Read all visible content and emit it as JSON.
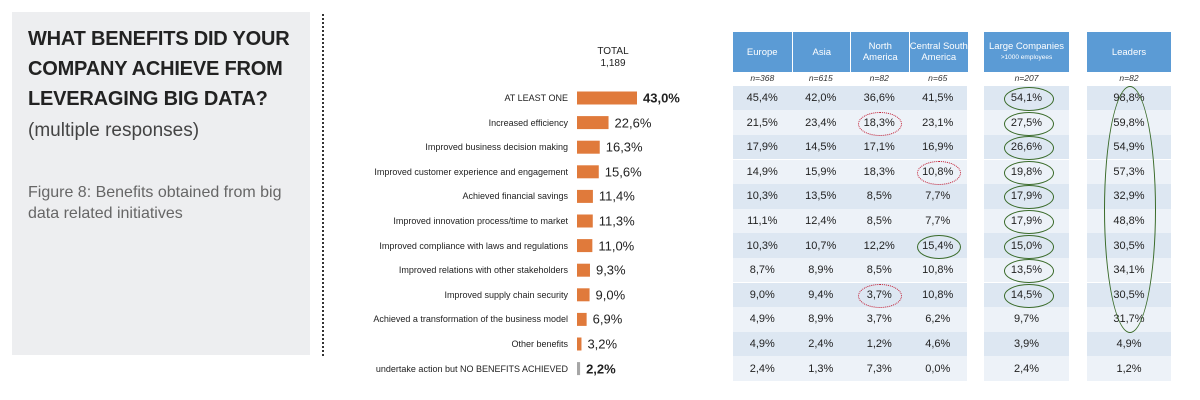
{
  "panel": {
    "title": "WHAT BENEFITS DID YOUR COMPANY ACHIEVE FROM LEVERAGING BIG DATA?",
    "subtitle": "(multiple responses)",
    "caption": "Figure 8: Benefits obtained from big data related initiatives"
  },
  "chart_data": {
    "type": "bar",
    "orientation": "horizontal",
    "header": {
      "label": "TOTAL",
      "n": "1,189"
    },
    "categories": [
      "AT LEAST ONE",
      "Increased efficiency",
      "Improved business decision making",
      "Improved customer experience and engagement",
      "Achieved financial savings",
      "Improved innovation process/time to market",
      "Improved compliance with laws and regulations",
      "Improved relations with other stakeholders",
      "Improved supply chain security",
      "Achieved a transformation of the business model",
      "Other benefits",
      "undertake action but NO BENEFITS ACHIEVED"
    ],
    "values": [
      43.0,
      22.6,
      16.3,
      15.6,
      11.4,
      11.3,
      11.0,
      9.3,
      9.0,
      6.9,
      3.2,
      2.2
    ],
    "value_labels": [
      "43,0%",
      "22,6%",
      "16,3%",
      "15,6%",
      "11,4%",
      "11,3%",
      "11,0%",
      "9,3%",
      "9,0%",
      "6,9%",
      "3,2%",
      "2,2%"
    ],
    "bar_colors": [
      "#e07a3b",
      "#e07a3b",
      "#e07a3b",
      "#e07a3b",
      "#e07a3b",
      "#e07a3b",
      "#e07a3b",
      "#e07a3b",
      "#e07a3b",
      "#e07a3b",
      "#e07a3b",
      "#a6a6a6"
    ],
    "bold_rows": [
      0,
      11
    ],
    "xlim": [
      0,
      43
    ]
  },
  "regions": {
    "columns": [
      {
        "label": "Europe",
        "n": "n=368"
      },
      {
        "label": "Asia",
        "n": "n=615"
      },
      {
        "label": "North America",
        "n": "n=82"
      },
      {
        "label": "Central South America",
        "n": "n=65"
      }
    ],
    "rows": [
      [
        "45,4%",
        "42,0%",
        "36,6%",
        "41,5%"
      ],
      [
        "21,5%",
        "23,4%",
        "18,3%",
        "23,1%"
      ],
      [
        "17,9%",
        "14,5%",
        "17,1%",
        "16,9%"
      ],
      [
        "14,9%",
        "15,9%",
        "18,3%",
        "10,8%"
      ],
      [
        "10,3%",
        "13,5%",
        "8,5%",
        "7,7%"
      ],
      [
        "11,1%",
        "12,4%",
        "8,5%",
        "7,7%"
      ],
      [
        "10,3%",
        "10,7%",
        "12,2%",
        "15,4%"
      ],
      [
        "8,7%",
        "8,9%",
        "8,5%",
        "10,8%"
      ],
      [
        "9,0%",
        "9,4%",
        "3,7%",
        "10,8%"
      ],
      [
        "4,9%",
        "8,9%",
        "3,7%",
        "6,2%"
      ],
      [
        "4,9%",
        "2,4%",
        "1,2%",
        "4,6%"
      ],
      [
        "2,4%",
        "1,3%",
        "7,3%",
        "0,0%"
      ]
    ],
    "red_circles": [
      [
        1,
        2
      ],
      [
        3,
        3
      ],
      [
        8,
        2
      ]
    ],
    "green_circles": [
      [
        6,
        3
      ]
    ]
  },
  "large": {
    "label": "Large Companies",
    "sublabel": ">1000 employees",
    "n": "n=207",
    "values": [
      "54,1%",
      "27,5%",
      "26,6%",
      "19,8%",
      "17,9%",
      "17,9%",
      "15,0%",
      "13,5%",
      "14,5%",
      "9,7%",
      "3,9%",
      "2,4%"
    ],
    "green_circles": [
      0,
      1,
      2,
      3,
      4,
      5,
      6,
      7,
      8
    ]
  },
  "leaders": {
    "label": "Leaders",
    "n": "n=82",
    "values": [
      "98,8%",
      "59,8%",
      "54,9%",
      "57,3%",
      "32,9%",
      "48,8%",
      "30,5%",
      "34,1%",
      "30,5%",
      "31,7%",
      "4,9%",
      "1,2%"
    ],
    "green_ellipse_rows": [
      0,
      9
    ]
  }
}
